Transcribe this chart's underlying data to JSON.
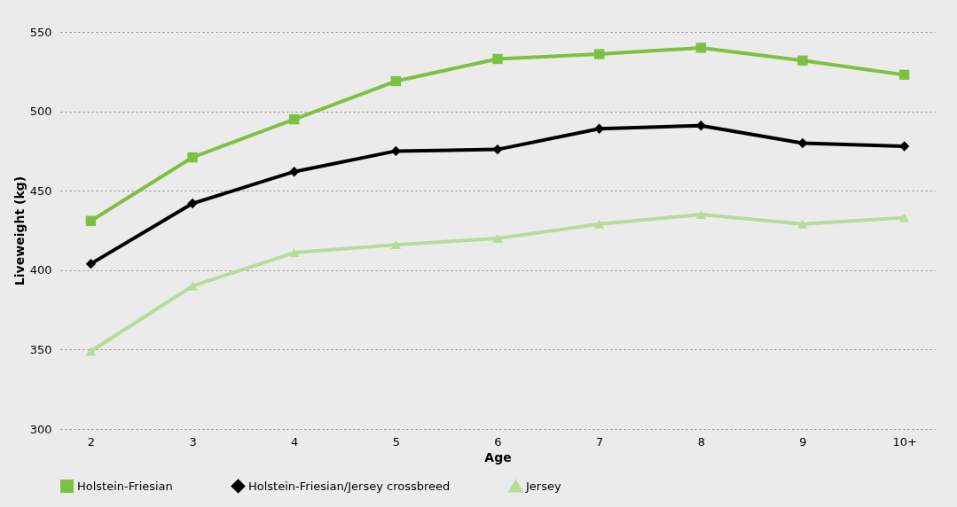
{
  "chart_data": {
    "type": "line",
    "xlabel": "Age",
    "ylabel": "Liveweight (kg)",
    "categories": [
      "2",
      "3",
      "4",
      "5",
      "6",
      "7",
      "8",
      "9",
      "10+"
    ],
    "series": [
      {
        "name": "Holstein-Friesian",
        "color": "#7dc142",
        "marker": "square",
        "values": [
          431,
          471,
          495,
          519,
          533,
          536,
          540,
          532,
          523
        ]
      },
      {
        "name": "Holstein-Friesian/Jersey crossbreed",
        "color": "#000000",
        "marker": "diamond",
        "values": [
          404,
          442,
          462,
          475,
          476,
          489,
          491,
          480,
          478
        ]
      },
      {
        "name": "Jersey",
        "color": "#b5dc98",
        "marker": "triangle",
        "values": [
          349,
          390,
          411,
          416,
          420,
          429,
          435,
          429,
          433
        ]
      }
    ],
    "ylim": [
      300,
      550
    ],
    "yticks": [
      300,
      350,
      400,
      450,
      500,
      550
    ],
    "grid": "y",
    "legend": "bottom",
    "line_style": "solid"
  }
}
